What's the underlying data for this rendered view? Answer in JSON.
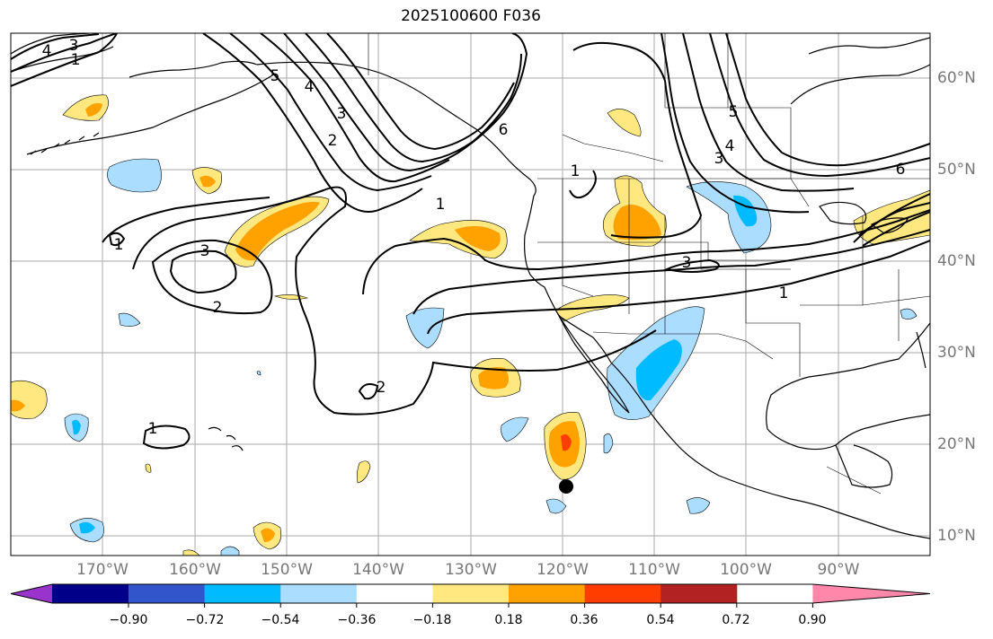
{
  "title": "2025100600 F036",
  "lat_labels": [
    "60°N",
    "50°N",
    "40°N",
    "30°N",
    "20°N",
    "10°N"
  ],
  "lon_labels": [
    "170°W",
    "160°W",
    "150°W",
    "140°W",
    "130°W",
    "120°W",
    "110°W",
    "100°W",
    "90°W"
  ],
  "colorbar": {
    "ticks": [
      "−0.90",
      "−0.72",
      "−0.54",
      "−0.36",
      "−0.18",
      "0.18",
      "0.36",
      "0.54",
      "0.72",
      "0.90"
    ],
    "colors": [
      "#9933cc",
      "#000088",
      "#3355cc",
      "#00bbff",
      "#aaddff",
      "#ffffff",
      "#ffe880",
      "#ffa200",
      "#ff3d00",
      "#b22222",
      "#ff88aa"
    ]
  },
  "contour_labels": [
    "1",
    "2",
    "3",
    "2",
    "1",
    "1",
    "2",
    "3",
    "4",
    "5",
    "6",
    "1",
    "3",
    "1",
    "4",
    "5",
    "6",
    "1",
    "3",
    "4",
    "3"
  ],
  "map_layers": {
    "fill_colors": {
      "light_yellow": "#ffe880",
      "orange": "#ffa200",
      "red": "#ff3d00",
      "light_blue": "#aaddff",
      "blue": "#00bbff"
    }
  },
  "marker": {
    "lat": 15.5,
    "lon": -119.5
  }
}
